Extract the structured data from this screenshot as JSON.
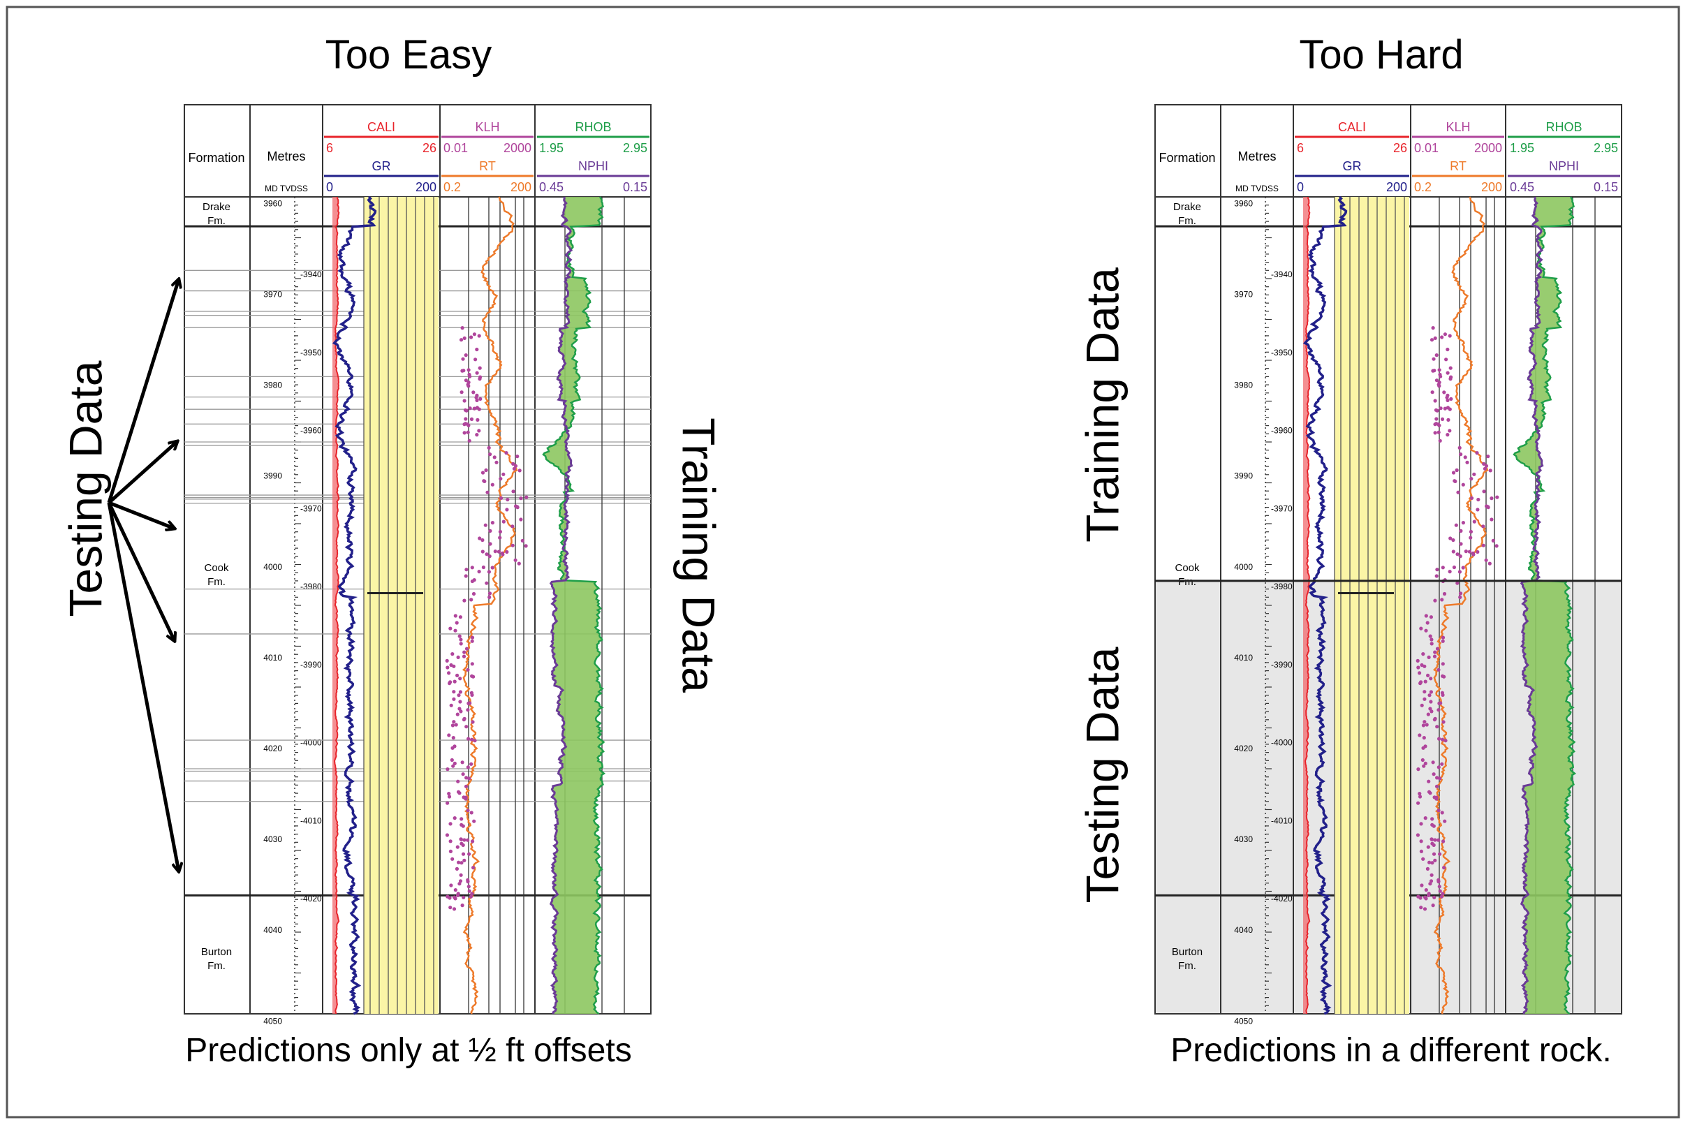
{
  "left_panel": {
    "title": "Too Easy",
    "caption": "Predictions only at ½ ft offsets",
    "label_left": "Testing Data",
    "label_right": "Training Data"
  },
  "right_panel": {
    "title": "Too Hard",
    "caption": "Predictions in a different rock.",
    "label_upper": "Training Data",
    "label_lower": "Testing Data"
  },
  "log": {
    "col_formation": "Formation",
    "col_metres": "Metres",
    "sub_md_tvdss": "MD TVDSS",
    "track1": {
      "top_name": "CALI",
      "top_min": "6",
      "top_max": "26",
      "bottom_name": "GR",
      "bottom_min": "0",
      "bottom_max": "200"
    },
    "track2": {
      "top_name": "KLH",
      "top_min": "0.01",
      "top_max": "2000",
      "bottom_name": "RT",
      "bottom_min": "0.2",
      "bottom_max": "200"
    },
    "track3": {
      "top_name": "RHOB",
      "top_min": "1.95",
      "top_max": "2.95",
      "bottom_name": "NPHI",
      "bottom_min": "0.45",
      "bottom_max": "0.15"
    },
    "formations": [
      {
        "line1": "Drake",
        "line2": "Fm."
      },
      {
        "line1": "Cook",
        "line2": "Fm."
      },
      {
        "line1": "Burton",
        "line2": "Fm."
      }
    ],
    "md_ticks": [
      "3960",
      "3970",
      "3980",
      "3990",
      "4000",
      "4010",
      "4020",
      "4030",
      "4040",
      "4050"
    ],
    "tvd_ticks": [
      "-3940",
      "-3950",
      "-3960",
      "-3970",
      "-3980",
      "-3990",
      "-4000",
      "-4010",
      "-4020"
    ]
  },
  "colors": {
    "cali": "#e8242b",
    "gr": "#22208a",
    "klh": "#b0459c",
    "rt": "#ee7a2a",
    "rhob": "#1f9e49",
    "nphi": "#6a3b96",
    "gr_fill": "#fbf5a6",
    "crossover_fill": "#8dc760",
    "testing_shade": "#e7e7e7"
  }
}
